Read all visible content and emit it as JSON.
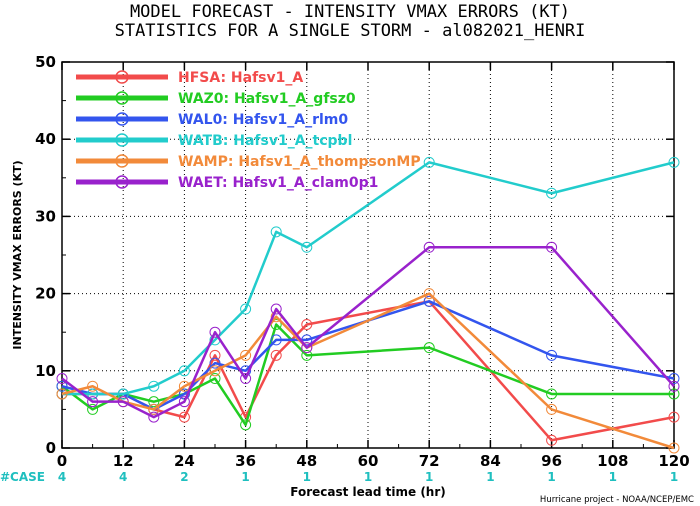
{
  "chart_data": {
    "type": "line",
    "title": [
      "MODEL FORECAST - INTENSITY VMAX ERRORS (KT)",
      "STATISTICS FOR A SINGLE STORM - al082021_HENRI"
    ],
    "xlabel": "Forecast lead time (hr)",
    "ylabel": "INTENSITY VMAX ERRORS (KT)",
    "xlim": [
      0,
      120
    ],
    "ylim": [
      0,
      50
    ],
    "xticks": [
      0,
      12,
      24,
      36,
      48,
      60,
      72,
      84,
      96,
      108,
      120
    ],
    "yticks": [
      0,
      10,
      20,
      30,
      40,
      50
    ],
    "x": [
      0,
      6,
      12,
      18,
      24,
      30,
      36,
      42,
      48,
      72,
      96,
      120
    ],
    "legend_position": "top-left",
    "series": [
      {
        "name": "HFSA: Hafsv1_A",
        "color": "#f24b4b",
        "values": [
          7,
          7,
          7,
          5,
          4,
          12,
          4,
          12,
          16,
          19,
          1,
          4
        ]
      },
      {
        "name": "WAZ0: Hafsv1_A_gfsz0",
        "color": "#22cc22",
        "values": [
          8,
          5,
          7,
          6,
          7,
          9,
          3,
          16,
          12,
          13,
          7,
          7
        ]
      },
      {
        "name": "WAL0: Hafsv1_A_rlm0",
        "color": "#3355ee",
        "values": [
          8,
          7,
          7,
          5,
          7,
          11,
          10,
          14,
          14,
          19,
          12,
          9
        ]
      },
      {
        "name": "WATB: Hafsv1_A_tcpbl",
        "color": "#22cccc",
        "values": [
          7,
          7,
          7,
          8,
          10,
          14,
          18,
          28,
          26,
          37,
          33,
          37
        ]
      },
      {
        "name": "WAMP: Hafsv1_A_thompsonMP",
        "color": "#f28a3a",
        "values": [
          7,
          8,
          6,
          5,
          8,
          10,
          12,
          17,
          13,
          20,
          5,
          0
        ]
      },
      {
        "name": "WAET: Hafsv1_A_clam0p1",
        "color": "#9922cc",
        "values": [
          9,
          6,
          6,
          4,
          6,
          15,
          9,
          18,
          13,
          26,
          26,
          8
        ]
      }
    ],
    "case_label": "#CASE",
    "case_counts": [
      {
        "x": 0,
        "n": "4"
      },
      {
        "x": 12,
        "n": "4"
      },
      {
        "x": 24,
        "n": "2"
      },
      {
        "x": 36,
        "n": "1"
      },
      {
        "x": 48,
        "n": "1"
      },
      {
        "x": 60,
        "n": "1"
      },
      {
        "x": 72,
        "n": "1"
      },
      {
        "x": 84,
        "n": "1"
      },
      {
        "x": 96,
        "n": "1"
      },
      {
        "x": 108,
        "n": "1"
      },
      {
        "x": 120,
        "n": "1"
      }
    ]
  },
  "footer": "Hurricane project - NOAA/NCEP/EMC"
}
